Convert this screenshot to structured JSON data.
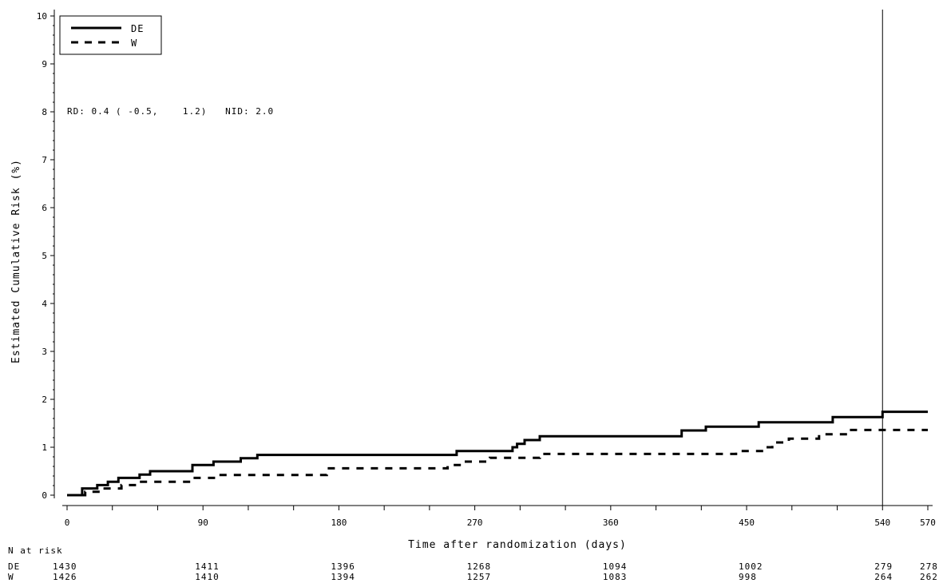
{
  "chart_data": {
    "type": "line",
    "subtype": "kaplan-meier cumulative risk step plot",
    "xlabel": "Time after randomization (days)",
    "ylabel": "Estimated Cumulative Risk (%)",
    "xlim": [
      0,
      570
    ],
    "ylim": [
      0,
      10
    ],
    "x_ticks": [
      0,
      30,
      60,
      90,
      120,
      150,
      180,
      210,
      240,
      270,
      300,
      330,
      360,
      390,
      420,
      450,
      480,
      510,
      540,
      570
    ],
    "x_tick_labels": [
      "0",
      "",
      "",
      "90",
      "",
      "",
      "180",
      "",
      "",
      "270",
      "",
      "",
      "360",
      "",
      "",
      "450",
      "",
      "",
      "540",
      "570"
    ],
    "y_ticks": [
      0,
      1,
      2,
      3,
      4,
      5,
      6,
      7,
      8,
      9,
      10
    ],
    "y_tick_labels": [
      "0",
      "1",
      "2",
      "3",
      "4",
      "5",
      "6",
      "7",
      "8",
      "9",
      "10"
    ],
    "grid": false,
    "legend": {
      "position": "top-left",
      "entries": [
        "DE",
        "W"
      ]
    },
    "reference_line_x": 540,
    "annotation": "RD: 0.4 ( -0.5,    1.2)   NID: 2.0",
    "series": [
      {
        "name": "DE",
        "style": "solid",
        "color": "#000000",
        "points": [
          [
            0,
            0
          ],
          [
            10,
            0
          ],
          [
            10,
            0.14
          ],
          [
            20,
            0.14
          ],
          [
            20,
            0.21
          ],
          [
            27,
            0.21
          ],
          [
            27,
            0.28
          ],
          [
            34,
            0.28
          ],
          [
            34,
            0.36
          ],
          [
            48,
            0.36
          ],
          [
            48,
            0.43
          ],
          [
            55,
            0.43
          ],
          [
            55,
            0.5
          ],
          [
            83,
            0.5
          ],
          [
            83,
            0.63
          ],
          [
            97,
            0.63
          ],
          [
            97,
            0.7
          ],
          [
            115,
            0.7
          ],
          [
            115,
            0.77
          ],
          [
            126,
            0.77
          ],
          [
            126,
            0.84
          ],
          [
            258,
            0.84
          ],
          [
            258,
            0.92
          ],
          [
            295,
            0.92
          ],
          [
            295,
            1.0
          ],
          [
            298,
            1.0
          ],
          [
            298,
            1.07
          ],
          [
            303,
            1.07
          ],
          [
            303,
            1.15
          ],
          [
            313,
            1.15
          ],
          [
            313,
            1.23
          ],
          [
            407,
            1.23
          ],
          [
            407,
            1.35
          ],
          [
            423,
            1.35
          ],
          [
            423,
            1.43
          ],
          [
            458,
            1.43
          ],
          [
            458,
            1.52
          ],
          [
            507,
            1.52
          ],
          [
            507,
            1.63
          ],
          [
            540,
            1.63
          ],
          [
            540,
            1.74
          ],
          [
            570,
            1.74
          ]
        ]
      },
      {
        "name": "W",
        "style": "dashed",
        "color": "#000000",
        "points": [
          [
            0,
            0
          ],
          [
            12,
            0
          ],
          [
            12,
            0.07
          ],
          [
            22,
            0.07
          ],
          [
            22,
            0.14
          ],
          [
            36,
            0.14
          ],
          [
            36,
            0.21
          ],
          [
            48,
            0.21
          ],
          [
            48,
            0.28
          ],
          [
            83,
            0.28
          ],
          [
            83,
            0.36
          ],
          [
            99,
            0.36
          ],
          [
            99,
            0.42
          ],
          [
            172,
            0.42
          ],
          [
            172,
            0.56
          ],
          [
            252,
            0.56
          ],
          [
            252,
            0.63
          ],
          [
            262,
            0.63
          ],
          [
            262,
            0.7
          ],
          [
            280,
            0.7
          ],
          [
            280,
            0.78
          ],
          [
            313,
            0.78
          ],
          [
            313,
            0.86
          ],
          [
            443,
            0.86
          ],
          [
            443,
            0.92
          ],
          [
            463,
            0.92
          ],
          [
            463,
            1.0
          ],
          [
            467,
            1.0
          ],
          [
            467,
            1.1
          ],
          [
            478,
            1.1
          ],
          [
            478,
            1.18
          ],
          [
            498,
            1.18
          ],
          [
            498,
            1.27
          ],
          [
            518,
            1.27
          ],
          [
            518,
            1.36
          ],
          [
            570,
            1.36
          ]
        ]
      }
    ],
    "number_at_risk": {
      "title": "N at risk",
      "times": [
        0,
        90,
        180,
        270,
        360,
        450,
        540,
        570
      ],
      "rows": [
        {
          "label": "DE",
          "values": [
            "1430",
            "1411",
            "1396",
            "1268",
            "1094",
            "1002",
            "279",
            "278"
          ]
        },
        {
          "label": "W",
          "values": [
            "1426",
            "1410",
            "1394",
            "1257",
            "1083",
            "998",
            "264",
            "262"
          ]
        }
      ]
    }
  }
}
